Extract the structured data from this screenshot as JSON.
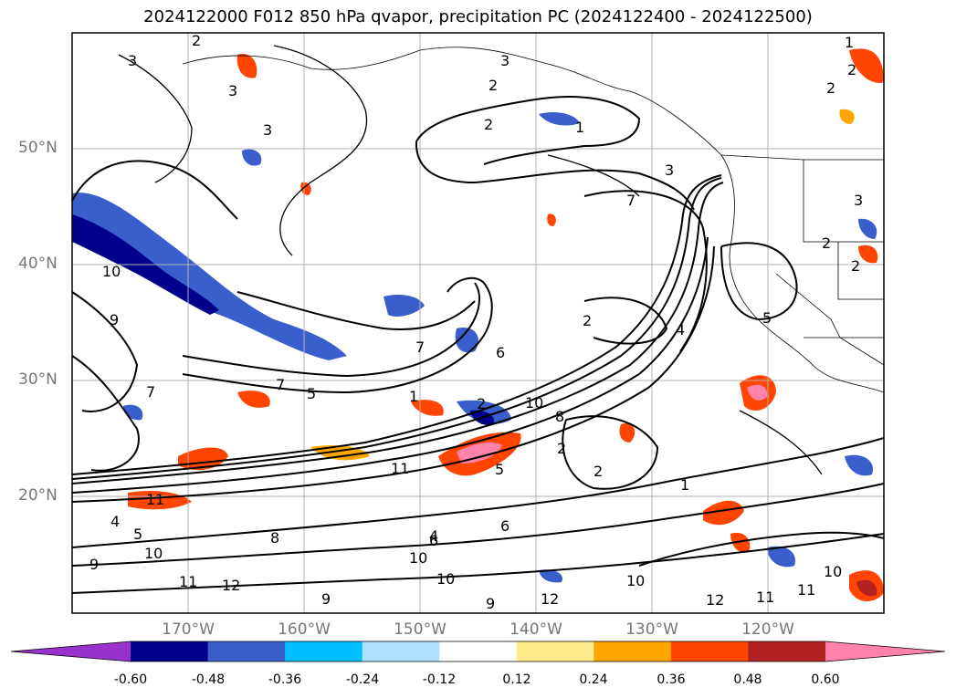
{
  "title": "2024122000 F012 850 hPa qvapor, precipitation PC (2024122400 - 2024122500)",
  "lat_labels": [
    "50°N",
    "40°N",
    "30°N",
    "20°N"
  ],
  "lon_labels": [
    "170°W",
    "160°W",
    "150°W",
    "140°W",
    "130°W",
    "120°W"
  ],
  "colorbar": {
    "ticks": [
      "-0.60",
      "-0.48",
      "-0.36",
      "-0.24",
      "-0.12",
      "0.12",
      "0.24",
      "0.36",
      "0.48",
      "0.60"
    ],
    "colors": [
      "#9932CC",
      "#00008B",
      "#3A5FCD",
      "#00BFFF",
      "#ADE0FA",
      "#FFFFFF",
      "#FFEC8B",
      "#FFA500",
      "#FF4500",
      "#B22222",
      "#FF82AB"
    ]
  },
  "contour_labels": [
    "1",
    "2",
    "3",
    "4",
    "5",
    "6",
    "7",
    "8",
    "9",
    "10",
    "11",
    "12"
  ]
}
